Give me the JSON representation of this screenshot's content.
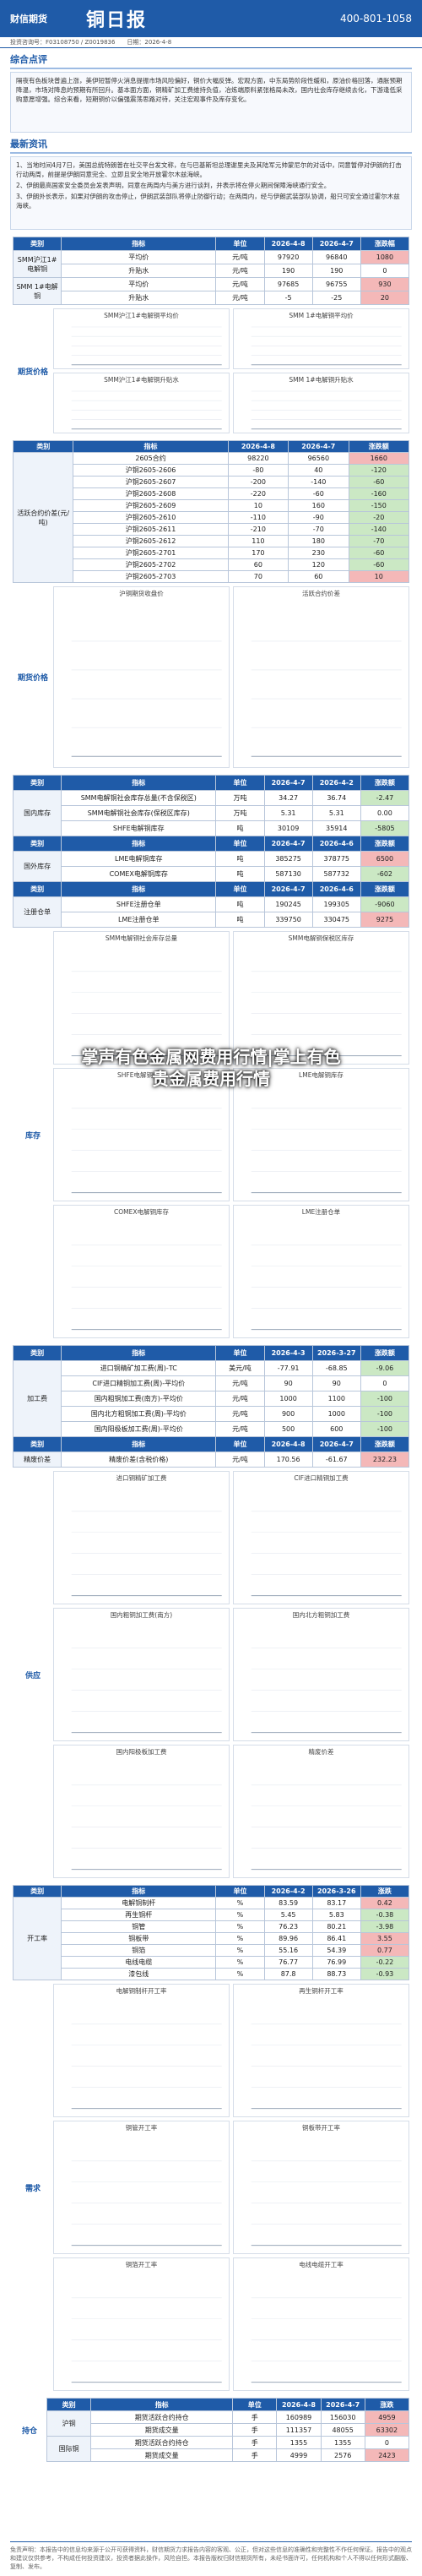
{
  "header": {
    "brand": "财信期货",
    "title": "铜日报",
    "hotline": "400-801-1058",
    "info": "投资咨询号：F03108750 / Z0019836　　日期：2026-4-8"
  },
  "summary": {
    "title": "综合点评",
    "text": "隔夜有色板块普遍上涨，美伊短暂停火消息提振市场风险偏好，铜价大幅反弹。宏观方面，中东局势阶段性缓和，原油价格回落，通胀预期降温，市场对降息的预期有所回升。基本面方面，铜精矿加工费维持负值，冶炼端原料紧张格局未改，国内社会库存继续去化，下游逢低采购意愿增强。综合来看，短期铜价以偏强震荡思路对待，关注宏观事件及库存变化。"
  },
  "news": {
    "title": "最新资讯",
    "items": [
      "1、当地时间4月7日，美国总统特朗普在社交平台发文称，在与巴基斯坦总理谢里夫及其陆军元帅蒙尼尔的对话中，同意暂停对伊朗的打击行动两周，前提是伊朗同意完全、立即且安全地开放霍尔木兹海峡。",
      "2、伊朗最高国家安全委员会发表声明，同意在两周内与美方进行谈判，并表示将在停火期间保障海峡通行安全。",
      "3、伊朗外长表示，如果对伊朗的攻击停止，伊朗武装部队将停止防御行动；在两周内，经与伊朗武装部队协调，船只可安全通过霍尔木兹海峡。"
    ]
  },
  "blocks": [
    {
      "label": "期货价格",
      "table": {
        "header": [
          "类别",
          "指标",
          "单位",
          "2026-4-8",
          "2026-4-7",
          "涨跌幅"
        ],
        "groups": [
          {
            "name": "SMM沪江1#电解铜",
            "rows": [
              [
                "平均价",
                "元/吨",
                97920,
                96840,
                1080
              ],
              [
                "升贴水",
                "元/吨",
                190,
                190,
                0
              ]
            ]
          },
          {
            "name": "SMM 1#电解铜",
            "rows": [
              [
                "平均价",
                "元/吨",
                97685,
                96755,
                930
              ],
              [
                "升贴水",
                "元/吨",
                -5,
                -25,
                20
              ]
            ]
          }
        ]
      },
      "charts": [
        "SMM沪江1#电解铜平均价",
        "SMM 1#电解铜平均价",
        "SMM沪江1#电解铜升贴水",
        "SMM 1#电解铜升贴水"
      ]
    },
    {
      "label": "期货价格",
      "table": {
        "header": [
          "类别",
          "指标",
          "2026-4-8",
          "2026-4-7",
          "涨跌额"
        ],
        "groups": [
          {
            "name": "活跃合约价差(元/吨)",
            "rows": [
              [
                "2605合约",
                98220,
                96560,
                1660
              ],
              [
                "沪铜2605-2606",
                -80,
                40,
                -120
              ],
              [
                "沪铜2605-2607",
                -200,
                -140,
                -60
              ],
              [
                "沪铜2605-2608",
                -220,
                -60,
                -160
              ],
              [
                "沪铜2605-2609",
                10,
                160,
                -150
              ],
              [
                "沪铜2605-2610",
                -110,
                -90,
                -20
              ],
              [
                "沪铜2605-2611",
                -210,
                -70,
                -140
              ],
              [
                "沪铜2605-2612",
                110,
                180,
                -70
              ],
              [
                "沪铜2605-2701",
                170,
                230,
                -60
              ],
              [
                "沪铜2605-2702",
                60,
                120,
                -60
              ],
              [
                "沪铜2605-2703",
                70,
                60,
                10
              ]
            ]
          }
        ]
      },
      "charts": [
        "沪铜期货收盘价",
        "活跃合约价差"
      ]
    },
    {
      "label": "库存",
      "table": {
        "header": [
          "类别",
          "指标",
          "单位",
          "2026-4-7",
          "2026-4-2",
          "涨跌额"
        ],
        "groups": [
          {
            "name": "国内库存",
            "rows": [
              [
                "SMM电解铜社会库存总量(不含保税区)",
                "万吨",
                34.27,
                36.74,
                -2.47
              ],
              [
                "SMM电解铜社会库存(保税区库存)",
                "万吨",
                5.31,
                5.31,
                "0.00"
              ],
              [
                "SHFE电解铜库存",
                "吨",
                30109,
                35914,
                -5805
              ]
            ]
          },
          {
            "name": "国外库存",
            "header": [
              "类别",
              "指标",
              "单位",
              "2026-4-7",
              "2026-4-6",
              "涨跌额"
            ],
            "rows": [
              [
                "LME电解铜库存",
                "吨",
                385275,
                378775,
                6500
              ],
              [
                "COMEX电解铜库存",
                "吨",
                587130,
                587732,
                -602
              ]
            ]
          },
          {
            "name": "注册仓单",
            "header": [
              "类别",
              "指标",
              "单位",
              "2026-4-7",
              "2026-4-6",
              "涨跌额"
            ],
            "rows": [
              [
                "SHFE注册仓单",
                "吨",
                190245,
                199305,
                -9060
              ],
              [
                "LME注册仓单",
                "吨",
                339750,
                330475,
                9275
              ]
            ]
          }
        ]
      },
      "charts": [
        "SMM电解铜社会库存总量",
        "SMM电解铜保税区库存",
        "SHFE电解铜库存",
        "LME电解铜库存",
        "COMEX电解铜库存",
        "LME注册仓单"
      ]
    },
    {
      "label": "供应",
      "table": {
        "header": [
          "类别",
          "指标",
          "单位",
          "2026-4-3",
          "2026-3-27",
          "涨跌额"
        ],
        "groups": [
          {
            "name": "加工费",
            "rows": [
              [
                "进口铜精矿加工费(周)-TC",
                "美元/吨",
                -77.91,
                -68.85,
                -9.06
              ],
              [
                "CIF进口精铜加工费(周)-平均价",
                "元/吨",
                90,
                90,
                0
              ],
              [
                "国内粗铜加工费(南方)-平均价",
                "元/吨",
                1000,
                1100,
                -100
              ],
              [
                "国内北方粗铜加工费(周)-平均价",
                "元/吨",
                900,
                1000,
                -100
              ],
              [
                "国内阳极板加工费(周)-平均价",
                "元/吨",
                500,
                600,
                -100
              ]
            ]
          },
          {
            "name": "精废价差",
            "header": [
              "类别",
              "指标",
              "单位",
              "2026-4-8",
              "2026-4-7",
              "涨跌额"
            ],
            "rows": [
              [
                "精废价差(含税价格)",
                "元/吨",
                170.56,
                -61.67,
                232.23
              ]
            ]
          }
        ]
      },
      "charts": [
        "进口铜精矿加工费",
        "CIF进口精铜加工费",
        "国内粗铜加工费(南方)",
        "国内北方粗铜加工费",
        "国内阳极板加工费",
        "精废价差"
      ]
    },
    {
      "label": "需求",
      "table": {
        "header": [
          "类别",
          "指标",
          "单位",
          "2026-4-2",
          "2026-3-26",
          "涨跌"
        ],
        "groups": [
          {
            "name": "开工率",
            "rows": [
              [
                "电解铜制杆",
                "%",
                83.59,
                83.17,
                0.42
              ],
              [
                "再生铜杆",
                "%",
                5.45,
                5.83,
                -0.38
              ],
              [
                "铜管",
                "%",
                76.23,
                80.21,
                -3.98
              ],
              [
                "铜板带",
                "%",
                89.96,
                86.41,
                3.55
              ],
              [
                "铜箔",
                "%",
                55.16,
                54.39,
                0.77
              ],
              [
                "电线电缆",
                "%",
                76.77,
                76.99,
                -0.22
              ],
              [
                "漆包线",
                "%",
                87.8,
                88.73,
                -0.93
              ]
            ]
          }
        ]
      },
      "charts": [
        "电解铜制杆开工率",
        "再生铜杆开工率",
        "铜管开工率",
        "铜板带开工率",
        "铜箔开工率",
        "电线电缆开工率"
      ]
    },
    {
      "label": "持仓",
      "table": {
        "header": [
          "类别",
          "指标",
          "单位",
          "2026-4-8",
          "2026-4-7",
          "涨跌"
        ],
        "groups": [
          {
            "name": "沪铜",
            "rows": [
              [
                "期货活跃合约持仓",
                "手",
                160989,
                156030,
                4959
              ],
              [
                "期货成交量",
                "手",
                111357,
                48055,
                63302
              ]
            ]
          },
          {
            "name": "国际铜",
            "rows": [
              [
                "期货活跃合约持仓",
                "手",
                1355,
                1355,
                0
              ],
              [
                "期货成交量",
                "手",
                4999,
                2576,
                2423
              ]
            ]
          }
        ]
      },
      "charts": []
    }
  ],
  "watermark": {
    "lines": [
      "掌声有色金属网费用行情|掌上有色",
      "贵金属费用行情"
    ]
  },
  "footer": {
    "text": "免责声明：本报告中的信息均来源于公开可获得资料，财信期货力求报告内容的客观、公正，但对这些信息的准确性和完整性不作任何保证。报告中的观点和建议仅供参考，不构成任何投资建议，投资者据此操作，风险自担。本报告版权归财信期货所有，未经书面许可，任何机构和个人不得以任何形式翻版、复制、发布。"
  }
}
